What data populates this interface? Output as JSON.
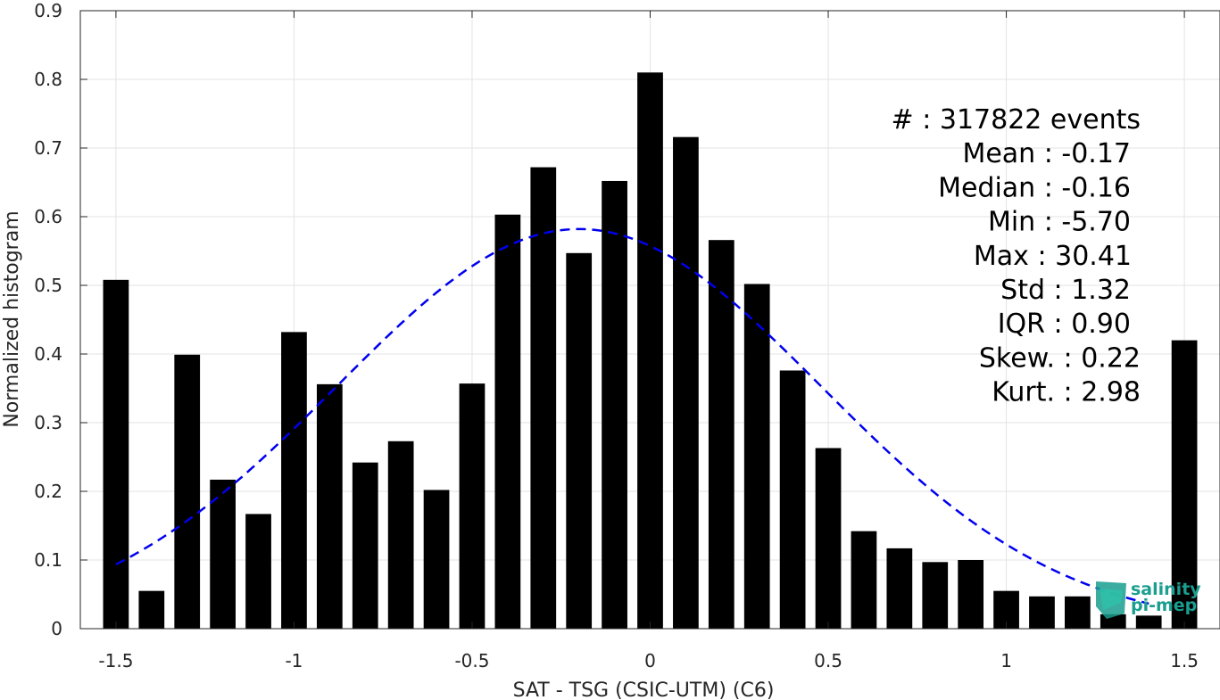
{
  "chart_data": {
    "type": "bar",
    "xlabel": "SAT - TSG (CSIC-UTM) (C6)",
    "ylabel": "Normalized histogram",
    "xlim": [
      -1.6,
      1.6
    ],
    "ylim": [
      0,
      0.9
    ],
    "xticks": [
      -1.5,
      -1,
      -0.5,
      0,
      0.5,
      1,
      1.5
    ],
    "xtick_labels": [
      "-1.5",
      "-1",
      "-0.5",
      "0",
      "0.5",
      "1",
      "1.5"
    ],
    "yticks": [
      0,
      0.1,
      0.2,
      0.3,
      0.4,
      0.5,
      0.6,
      0.7,
      0.8,
      0.9
    ],
    "ytick_labels": [
      "0",
      "0.1",
      "0.2",
      "0.3",
      "0.4",
      "0.5",
      "0.6",
      "0.7",
      "0.8",
      "0.9"
    ],
    "grid": true,
    "bar_color": "#000000",
    "bin_centers": [
      -1.5,
      -1.4,
      -1.3,
      -1.2,
      -1.1,
      -1.0,
      -0.9,
      -0.8,
      -0.7,
      -0.6,
      -0.5,
      -0.4,
      -0.3,
      -0.2,
      -0.1,
      0.0,
      0.1,
      0.2,
      0.3,
      0.4,
      0.5,
      0.6,
      0.7,
      0.8,
      0.9,
      1.0,
      1.1,
      1.2,
      1.3,
      1.4,
      1.5
    ],
    "values": [
      0.508,
      0.055,
      0.399,
      0.217,
      0.167,
      0.432,
      0.356,
      0.242,
      0.273,
      0.202,
      0.357,
      0.603,
      0.672,
      0.547,
      0.652,
      0.81,
      0.716,
      0.566,
      0.502,
      0.376,
      0.263,
      0.142,
      0.117,
      0.097,
      0.1,
      0.055,
      0.047,
      0.047,
      0.021,
      0.019,
      0.42
    ],
    "fit_curve": {
      "type": "gaussian",
      "style": "dashed",
      "color": "#0000ee",
      "mean": -0.2,
      "std": 0.68,
      "peak": 0.582,
      "x_range": [
        -1.5,
        1.4
      ]
    },
    "stats": [
      "#  : 317822 events",
      "Mean : -0.17",
      "Median : -0.16",
      "Min : -5.70",
      "Max : 30.41",
      "Std : 1.32",
      "IQR : 0.90",
      "Skew. : 0.22",
      "Kurt. : 2.98"
    ],
    "logo": {
      "line1": "salinity",
      "line2": "pi-mep",
      "color": "#1a9e8f"
    }
  }
}
